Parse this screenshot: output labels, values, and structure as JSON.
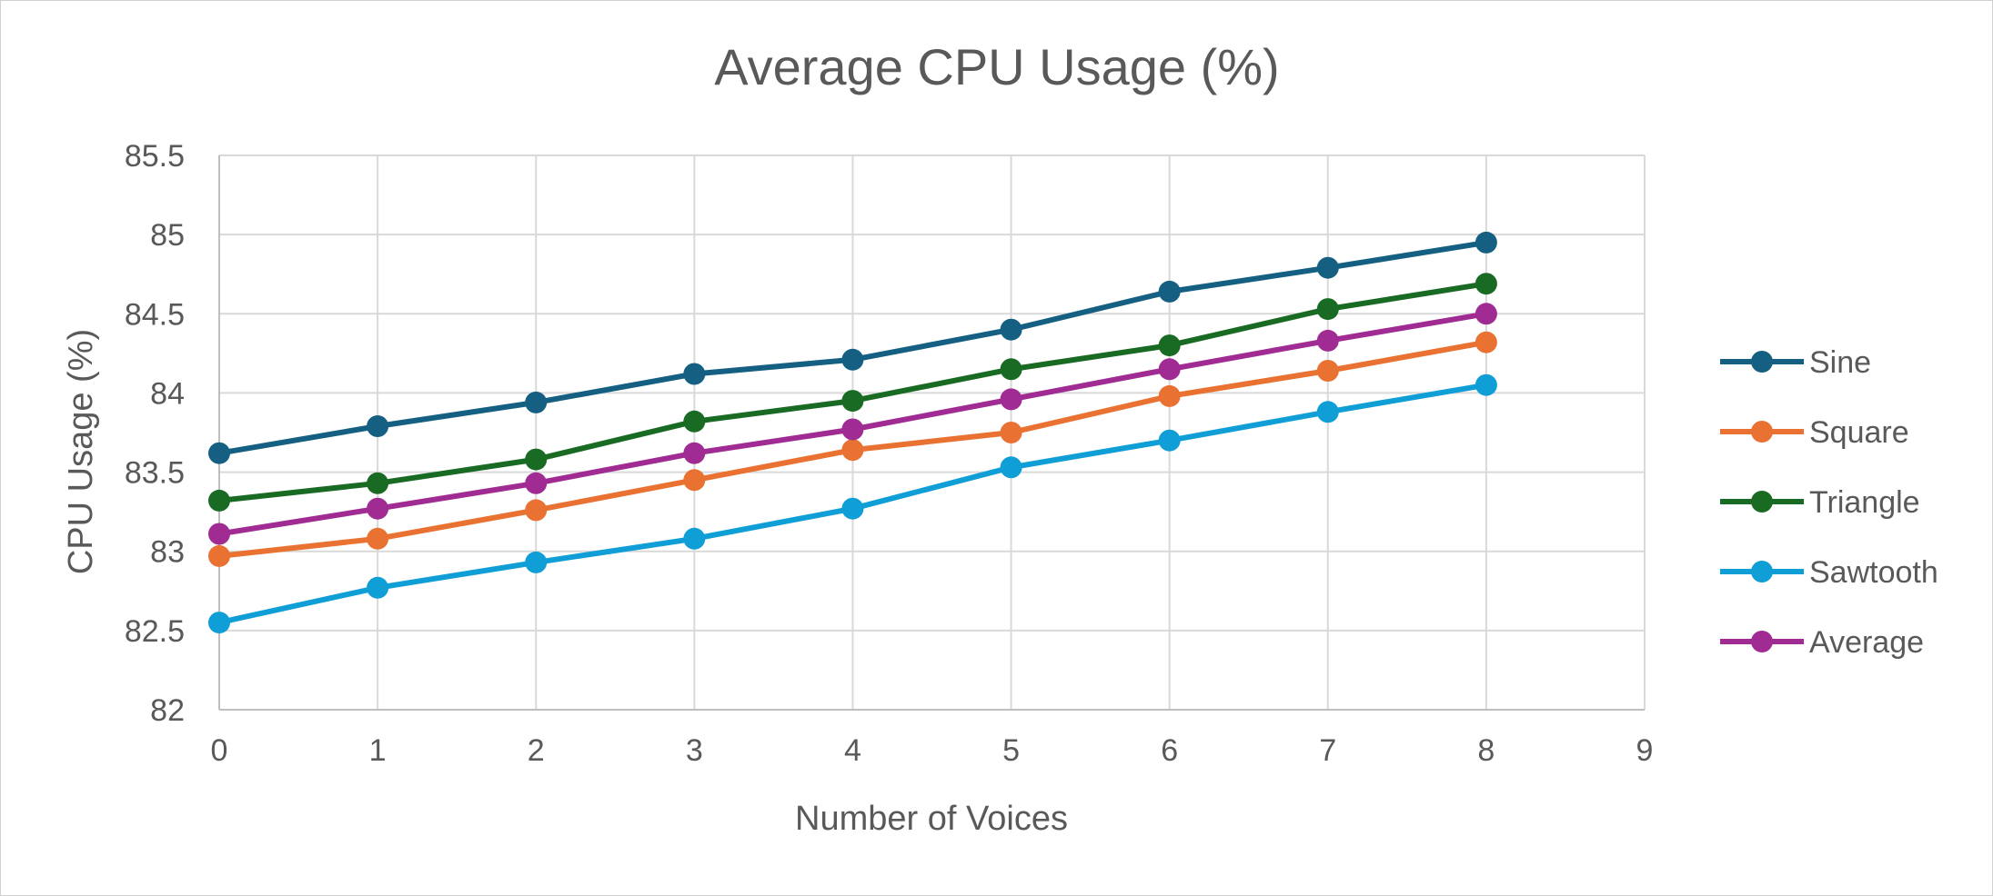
{
  "chart_data": {
    "type": "line",
    "title": "Average CPU Usage (%)",
    "xlabel": "Number of Voices",
    "ylabel": "CPU Usage (%)",
    "xlim": [
      0,
      9
    ],
    "ylim": [
      82,
      85.5
    ],
    "x_ticks": [
      0,
      1,
      2,
      3,
      4,
      5,
      6,
      7,
      8,
      9
    ],
    "y_ticks": [
      82,
      82.5,
      83,
      83.5,
      84,
      84.5,
      85,
      85.5
    ],
    "grid": true,
    "legend_position": "right",
    "x": [
      0,
      1,
      2,
      3,
      4,
      5,
      6,
      7,
      8
    ],
    "series": [
      {
        "name": "Sine",
        "color": "#156082",
        "values": [
          83.62,
          83.79,
          83.94,
          84.12,
          84.21,
          84.4,
          84.64,
          84.79,
          84.95
        ]
      },
      {
        "name": "Square",
        "color": "#E97132",
        "values": [
          82.97,
          83.08,
          83.26,
          83.45,
          83.64,
          83.75,
          83.98,
          84.14,
          84.32
        ]
      },
      {
        "name": "Triangle",
        "color": "#196B24",
        "values": [
          83.32,
          83.43,
          83.58,
          83.82,
          83.95,
          84.15,
          84.3,
          84.53,
          84.69
        ]
      },
      {
        "name": "Sawtooth",
        "color": "#0F9ED5",
        "values": [
          82.55,
          82.77,
          82.93,
          83.08,
          83.27,
          83.53,
          83.7,
          83.88,
          84.05
        ]
      },
      {
        "name": "Average",
        "color": "#A02B93",
        "values": [
          83.11,
          83.27,
          83.43,
          83.62,
          83.77,
          83.96,
          84.15,
          84.33,
          84.5
        ]
      }
    ]
  }
}
